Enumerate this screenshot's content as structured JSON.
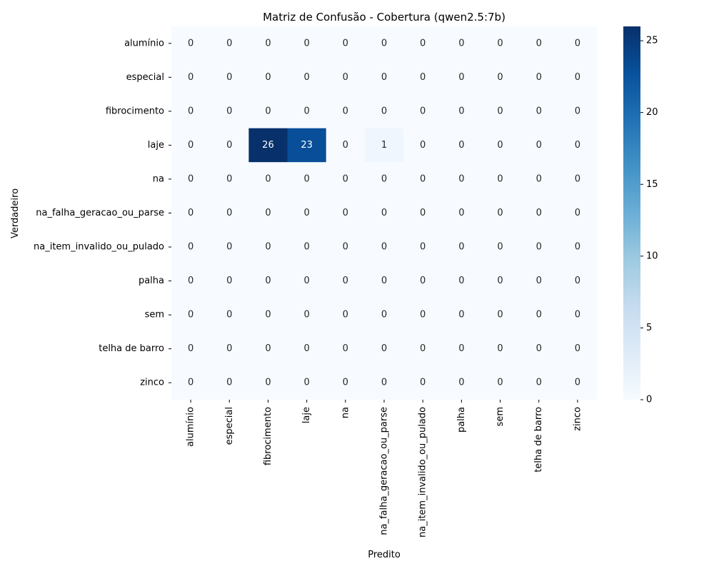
{
  "chart_data": {
    "type": "heatmap",
    "title": "Matriz de Confusão - Cobertura (qwen2.5:7b)",
    "xlabel": "Predito",
    "ylabel": "Verdadeiro",
    "x_categories": [
      "alumínio",
      "especial",
      "fibrocimento",
      "laje",
      "na",
      "na_falha_geracao_ou_parse",
      "na_item_invalido_ou_pulado",
      "palha",
      "sem",
      "telha de barro",
      "zinco"
    ],
    "y_categories": [
      "alumínio",
      "especial",
      "fibrocimento",
      "laje",
      "na",
      "na_falha_geracao_ou_parse",
      "na_item_invalido_ou_pulado",
      "palha",
      "sem",
      "telha de barro",
      "zinco"
    ],
    "values": [
      [
        0,
        0,
        0,
        0,
        0,
        0,
        0,
        0,
        0,
        0,
        0
      ],
      [
        0,
        0,
        0,
        0,
        0,
        0,
        0,
        0,
        0,
        0,
        0
      ],
      [
        0,
        0,
        0,
        0,
        0,
        0,
        0,
        0,
        0,
        0,
        0
      ],
      [
        0,
        0,
        26,
        23,
        0,
        1,
        0,
        0,
        0,
        0,
        0
      ],
      [
        0,
        0,
        0,
        0,
        0,
        0,
        0,
        0,
        0,
        0,
        0
      ],
      [
        0,
        0,
        0,
        0,
        0,
        0,
        0,
        0,
        0,
        0,
        0
      ],
      [
        0,
        0,
        0,
        0,
        0,
        0,
        0,
        0,
        0,
        0,
        0
      ],
      [
        0,
        0,
        0,
        0,
        0,
        0,
        0,
        0,
        0,
        0,
        0
      ],
      [
        0,
        0,
        0,
        0,
        0,
        0,
        0,
        0,
        0,
        0,
        0
      ],
      [
        0,
        0,
        0,
        0,
        0,
        0,
        0,
        0,
        0,
        0,
        0
      ],
      [
        0,
        0,
        0,
        0,
        0,
        0,
        0,
        0,
        0,
        0,
        0
      ]
    ],
    "colorbar": {
      "range": [
        0,
        26
      ],
      "ticks": [
        0,
        5,
        10,
        15,
        20,
        25
      ],
      "colormap": "Blues",
      "colors": [
        "#f7fbff",
        "#deebf7",
        "#c6dbef",
        "#9ecae1",
        "#6baed6",
        "#4292c6",
        "#2171b5",
        "#08519c",
        "#08306b"
      ]
    },
    "cell_text_colors": {
      "light": "#ffffff",
      "dark": "#262626"
    }
  }
}
